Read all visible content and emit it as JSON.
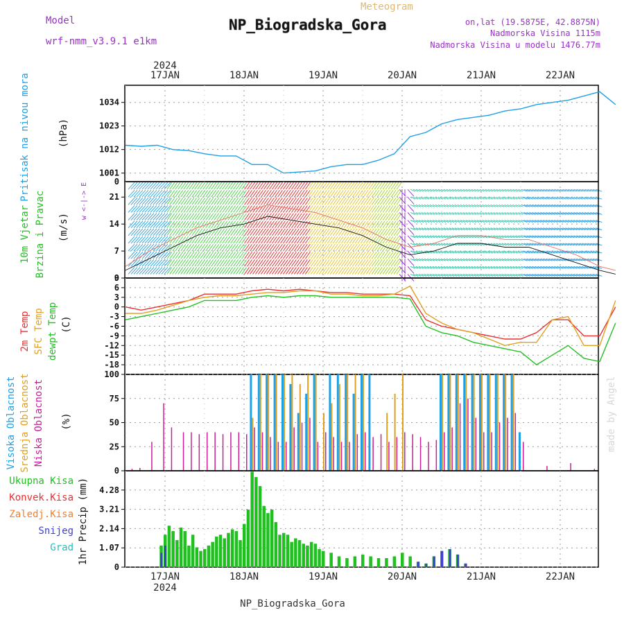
{
  "header": {
    "model_label": "Model",
    "model_name": "wrf-nmm_v3.9.1 e1km",
    "meteogram_label": "Meteogram",
    "station": "NP_Biogradska_Gora",
    "lonlat": "on,lat (19.5875E, 42.8875N)",
    "altitude": "Nadmorska Visina 1115m",
    "model_altitude": "Nadmorska Visina u modelu 1476.77m",
    "footer_station": "NP_Biogradska_Gora",
    "credit": "made by Angel"
  },
  "time_axis": {
    "year": "2024",
    "days": [
      "17JAN",
      "18JAN",
      "19JAN",
      "20JAN",
      "21JAN",
      "22JAN"
    ]
  },
  "colors": {
    "pressure": "#1ea0e6",
    "temp2m": "#e83030",
    "sfc_temp": "#e0a020",
    "dewpoint": "#20c020",
    "cloud_high": "#1ea0e6",
    "cloud_mid": "#e0a020",
    "cloud_low": "#c81e96",
    "precip_total": "#20c020",
    "precip_conv": "#e83030",
    "precip_snow": "#4040d0",
    "precip_grad": "#20c0c0",
    "wind_label": "#20c020",
    "wind_dir_label": "#9a30c8"
  },
  "chart_data": [
    {
      "type": "line",
      "panel": "pressure",
      "ylabel_lines": [
        "Pritisak na nivou mora",
        "(hPa)"
      ],
      "yticks": [
        "1001",
        "1012",
        "1023",
        "1034"
      ],
      "ylim": [
        997,
        1042
      ],
      "x_days": [
        -0.5,
        -0.3,
        -0.1,
        0.1,
        0.3,
        0.5,
        0.7,
        0.9,
        1.1,
        1.3,
        1.5,
        1.7,
        1.9,
        2.1,
        2.3,
        2.5,
        2.7,
        2.9,
        3.1,
        3.3,
        3.5,
        3.7,
        3.9,
        4.1,
        4.3,
        4.5,
        4.7,
        4.9,
        5.1,
        5.3,
        5.5,
        5.7
      ],
      "series": [
        {
          "values": [
            1014,
            1013.5,
            1014,
            1012,
            1011.5,
            1010,
            1009,
            1009,
            1005,
            1005,
            1001,
            1001.5,
            1002,
            1004,
            1005,
            1005,
            1007,
            1010,
            1018,
            1020,
            1024,
            1026,
            1027,
            1028,
            1030,
            1031,
            1033,
            1034,
            1035,
            1037,
            1039,
            1033
          ]
        }
      ]
    },
    {
      "type": "line",
      "panel": "wind",
      "ylabel_lines": [
        "10m Vjetar",
        "Brzina i Pravac",
        "(m/s)"
      ],
      "dir_legend": "w <-|-> E",
      "yticks": [
        "0",
        "7",
        "14",
        "21"
      ],
      "ylim": [
        0,
        25
      ],
      "top_tick": "0",
      "x_days": [
        -0.5,
        -0.2,
        0.1,
        0.4,
        0.7,
        1.0,
        1.3,
        1.6,
        1.9,
        2.2,
        2.5,
        2.8,
        3.1,
        3.4,
        3.7,
        4.0,
        4.3,
        4.6,
        4.9,
        5.2,
        5.5,
        5.7
      ],
      "series": [
        {
          "name": "mean",
          "values": [
            2,
            5,
            8,
            11,
            13,
            14,
            16,
            15,
            14,
            13,
            11,
            8,
            6,
            7,
            9,
            9,
            8,
            8,
            6,
            4,
            2,
            1
          ]
        },
        {
          "name": "gust",
          "values": [
            3,
            7,
            10,
            13,
            15,
            17,
            19,
            18,
            17,
            15,
            13,
            10,
            8,
            9,
            11,
            11,
            10,
            10,
            8,
            6,
            3,
            2
          ]
        }
      ]
    },
    {
      "type": "line",
      "panel": "temperature",
      "ylabel_lines": [
        "2m Temp",
        "SFC Temp",
        "dewpt Temp",
        "(C)"
      ],
      "yticks": [
        "6",
        "3",
        "0",
        "-3",
        "-6",
        "-9",
        "-12",
        "-15",
        "-18"
      ],
      "top_tick": "9",
      "ylim": [
        -21,
        9
      ],
      "x_days": [
        -0.5,
        -0.3,
        -0.1,
        0.1,
        0.3,
        0.5,
        0.7,
        0.9,
        1.1,
        1.3,
        1.5,
        1.7,
        1.9,
        2.1,
        2.3,
        2.5,
        2.7,
        2.9,
        3.1,
        3.3,
        3.5,
        3.7,
        3.9,
        4.1,
        4.3,
        4.5,
        4.7,
        4.9,
        5.1,
        5.3,
        5.5,
        5.7
      ],
      "series": [
        {
          "name": "2m Temp",
          "values": [
            0,
            -1,
            0,
            1,
            2,
            4,
            4,
            4,
            5,
            5.5,
            5,
            5.5,
            5,
            4.5,
            4.5,
            4,
            4,
            4,
            3.5,
            -4,
            -6,
            -7,
            -8,
            -9,
            -10,
            -10,
            -8,
            -4,
            -4,
            -9,
            -9,
            0
          ]
        },
        {
          "name": "SFC Temp",
          "values": [
            -2,
            -2,
            -1,
            0.5,
            2,
            3,
            3.5,
            3.5,
            4,
            4.5,
            4.5,
            5,
            5,
            4,
            4,
            3.5,
            3.5,
            4,
            6.5,
            -2,
            -5,
            -7,
            -8,
            -10,
            -12,
            -11,
            -11,
            -4,
            -3,
            -12,
            -12,
            2
          ]
        },
        {
          "name": "dewpt Temp",
          "values": [
            -4,
            -3,
            -2,
            -1,
            0,
            2,
            2,
            2,
            3,
            3.5,
            3,
            3.5,
            3.5,
            3,
            3,
            3,
            3,
            3,
            2.5,
            -6,
            -8,
            -9,
            -11,
            -12,
            -13,
            -14,
            -18,
            -15,
            -12,
            -16,
            -17,
            -5
          ]
        }
      ]
    },
    {
      "type": "bar",
      "panel": "clouds",
      "ylabel_lines": [
        "Visoka Oblacnost",
        "Srednja Oblacnost",
        "Niska Oblacnost",
        "(%)"
      ],
      "yticks": [
        "0",
        "25",
        "50",
        "75",
        "100"
      ],
      "ylim": [
        0,
        100
      ],
      "x_days": [
        -0.45,
        -0.35,
        -0.2,
        -0.05,
        0.05,
        0.2,
        0.3,
        0.4,
        0.5,
        0.6,
        0.7,
        0.8,
        0.9,
        1.0,
        1.1,
        1.2,
        1.3,
        1.4,
        1.5,
        1.6,
        1.7,
        1.8,
        1.9,
        2.0,
        2.1,
        2.2,
        2.3,
        2.4,
        2.5,
        2.6,
        2.7,
        2.8,
        2.9,
        3.0,
        3.1,
        3.2,
        3.3,
        3.4,
        3.5,
        3.6,
        3.7,
        3.8,
        3.9,
        4.0,
        4.1,
        4.2,
        4.3,
        4.4,
        4.5,
        4.8,
        5.1,
        5.4
      ],
      "series": [
        {
          "name": "Visoka Oblacnost",
          "values": [
            0,
            0,
            0,
            0,
            0,
            0,
            0,
            0,
            0,
            0,
            0,
            0,
            0,
            0,
            100,
            100,
            100,
            100,
            100,
            90,
            60,
            80,
            100,
            0,
            100,
            100,
            100,
            80,
            100,
            100,
            0,
            0,
            0,
            0,
            0,
            0,
            0,
            0,
            100,
            100,
            100,
            100,
            100,
            100,
            100,
            100,
            100,
            100,
            40,
            0,
            0,
            0
          ]
        },
        {
          "name": "Srednja Oblacnost",
          "values": [
            0,
            0,
            0,
            0,
            0,
            0,
            0,
            0,
            0,
            0,
            0,
            0,
            0,
            0,
            55,
            100,
            100,
            100,
            100,
            100,
            90,
            100,
            100,
            60,
            70,
            90,
            100,
            100,
            100,
            0,
            0,
            60,
            80,
            100,
            0,
            0,
            0,
            0,
            100,
            100,
            100,
            100,
            100,
            100,
            100,
            100,
            100,
            100,
            0,
            0,
            0,
            0
          ]
        },
        {
          "name": "Niska Oblacnost",
          "values": [
            2,
            3,
            30,
            70,
            45,
            40,
            40,
            38,
            40,
            40,
            38,
            40,
            40,
            38,
            45,
            40,
            35,
            30,
            30,
            45,
            50,
            55,
            30,
            40,
            35,
            30,
            30,
            38,
            40,
            35,
            38,
            30,
            35,
            40,
            38,
            35,
            30,
            32,
            40,
            45,
            70,
            75,
            55,
            40,
            40,
            50,
            55,
            60,
            30,
            5,
            8,
            2
          ]
        }
      ]
    },
    {
      "type": "bar",
      "panel": "precipitation",
      "ylabel_lines": [
        "1hr Precip (mm)"
      ],
      "legend": [
        "Ukupna Kisa",
        "Konvek.Kisa",
        "Zaledj.Kisa",
        "Snijeg",
        "Grad"
      ],
      "yticks": [
        "0",
        "1.07",
        "2.14",
        "3.21",
        "4.28"
      ],
      "ylim": [
        0,
        5.35
      ],
      "x_days": [
        -0.05,
        0.0,
        0.05,
        0.1,
        0.15,
        0.2,
        0.25,
        0.3,
        0.35,
        0.4,
        0.45,
        0.5,
        0.55,
        0.6,
        0.65,
        0.7,
        0.75,
        0.8,
        0.85,
        0.9,
        0.95,
        1.0,
        1.05,
        1.1,
        1.15,
        1.2,
        1.25,
        1.3,
        1.35,
        1.4,
        1.45,
        1.5,
        1.55,
        1.6,
        1.65,
        1.7,
        1.75,
        1.8,
        1.85,
        1.9,
        1.95,
        2.0,
        2.1,
        2.2,
        2.3,
        2.4,
        2.5,
        2.6,
        2.7,
        2.8,
        2.9,
        3.0,
        3.1,
        3.2,
        3.3,
        3.4,
        3.5,
        3.6,
        3.7,
        3.8
      ],
      "series": [
        {
          "name": "Ukupna Kisa",
          "values": [
            1.2,
            1.8,
            2.3,
            2.0,
            1.5,
            2.2,
            2.0,
            1.2,
            1.8,
            1.1,
            0.9,
            1.0,
            1.2,
            1.4,
            1.7,
            1.8,
            1.6,
            1.9,
            2.1,
            2.0,
            1.5,
            2.4,
            3.2,
            5.3,
            5.0,
            4.5,
            3.4,
            3.0,
            3.2,
            2.5,
            1.8,
            1.9,
            1.8,
            1.4,
            1.6,
            1.5,
            1.3,
            1.2,
            1.4,
            1.3,
            1.0,
            0.9,
            0.8,
            0.6,
            0.5,
            0.6,
            0.7,
            0.6,
            0.5,
            0.5,
            0.6,
            0.8,
            0.6,
            0.3,
            0.2,
            0.6,
            0.9,
            1.0,
            0.7,
            0.2
          ]
        },
        {
          "name": "Snijeg",
          "values": [
            0.8,
            1.2,
            0,
            0,
            0,
            0,
            0,
            0,
            0,
            0,
            0,
            0,
            0,
            0,
            0,
            0,
            0,
            0,
            0,
            0,
            0,
            0,
            0,
            0,
            0,
            0,
            0,
            0,
            0,
            0,
            0,
            0,
            0,
            0,
            0,
            0,
            0,
            0,
            0,
            0,
            0,
            0,
            0,
            0,
            0,
            0,
            0,
            0,
            0,
            0,
            0,
            0,
            0,
            0.3,
            0.2,
            0.6,
            0.9,
            1.0,
            0.7,
            0.2
          ]
        }
      ]
    }
  ]
}
